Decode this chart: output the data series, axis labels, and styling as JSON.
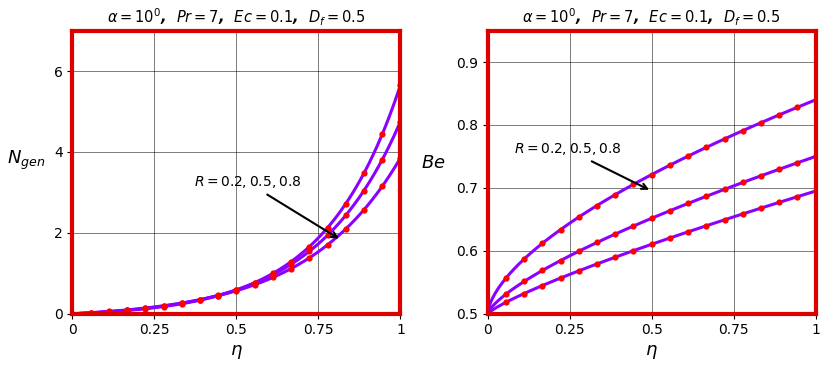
{
  "title": "$\\alpha = 10^0$,  $Pr = 7$,  $Ec = 0.1$,  $D_f= 0.5$",
  "left_ylabel": "$N_{gen}$",
  "right_ylabel": "$Be$",
  "xlabel": "$\\eta$",
  "R_values": [
    0.2,
    0.5,
    0.8
  ],
  "line_color": "#8B00FF",
  "dot_color": "#FF0000",
  "border_color": "#DD0000",
  "left_ylim": [
    0,
    7
  ],
  "right_ylim": [
    0.5,
    0.95
  ],
  "xlim": [
    0,
    1
  ],
  "left_yticks": [
    0,
    2,
    4,
    6
  ],
  "right_yticks": [
    0.5,
    0.6,
    0.7,
    0.8,
    0.9
  ],
  "xticks": [
    0,
    0.25,
    0.5,
    0.75,
    1
  ],
  "annotation_left": "$R = 0.2, 0.5, 0.8$",
  "annotation_right": "$R = 0.2, 0.5, 0.8$",
  "n_dots": 19
}
